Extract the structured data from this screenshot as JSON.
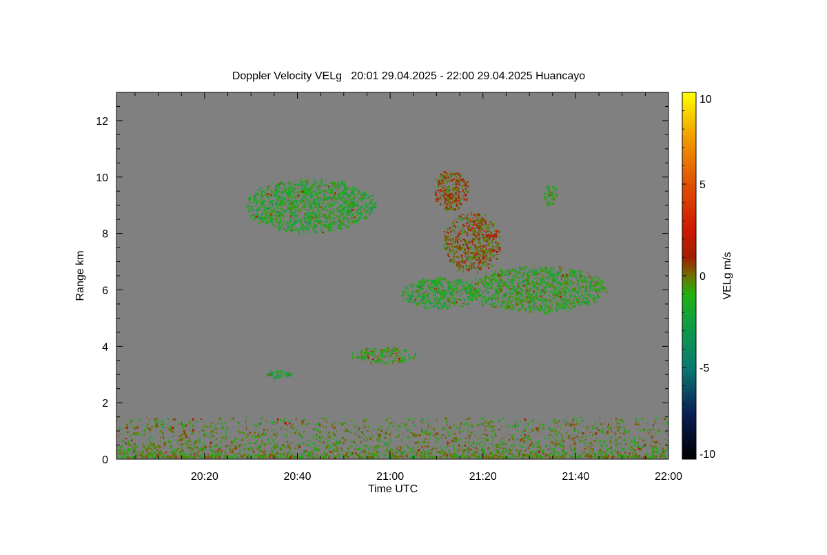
{
  "chart_data": {
    "type": "heatmap",
    "title": "Doppler Velocity VELg   20:01 29.04.2025 - 22:00 29.04.2025 Huancayo",
    "xlabel": "Time UTC",
    "ylabel": "Range km",
    "xlim": [
      "20:01",
      "22:00"
    ],
    "ylim": [
      0,
      13
    ],
    "x_ticks": [
      "20:20",
      "20:40",
      "21:00",
      "21:20",
      "21:40",
      "22:00"
    ],
    "y_ticks": [
      "0",
      "2",
      "4",
      "6",
      "8",
      "10",
      "12"
    ],
    "background_color": "#808080",
    "colorbar": {
      "label": "VELg m/s",
      "ticks": [
        "10",
        "5",
        "0",
        "-5",
        "-10"
      ],
      "range": [
        -10,
        10
      ],
      "stops": [
        {
          "value": -10,
          "color": "#000000"
        },
        {
          "value": -7.5,
          "color": "#0a1f55"
        },
        {
          "value": -5,
          "color": "#0a7a70"
        },
        {
          "value": -2.5,
          "color": "#10a040"
        },
        {
          "value": -1,
          "color": "#22b010"
        },
        {
          "value": 0,
          "color": "#707000"
        },
        {
          "value": 1,
          "color": "#a02000"
        },
        {
          "value": 2.5,
          "color": "#cc1800"
        },
        {
          "value": 5,
          "color": "#e05000"
        },
        {
          "value": 7.5,
          "color": "#f09a00"
        },
        {
          "value": 10,
          "color": "#ffff00"
        }
      ]
    },
    "echo_regions": [
      {
        "name": "upper cloud A",
        "time_start": "20:28",
        "time_end": "20:57",
        "range_bottom": 8.0,
        "range_top": 10.0,
        "velocity": -1.5
      },
      {
        "name": "upper cloud B",
        "time_start": "21:09",
        "time_end": "21:17",
        "range_bottom": 8.8,
        "range_top": 10.3,
        "velocity": 0.5
      },
      {
        "name": "small echo",
        "time_start": "21:33",
        "time_end": "21:36",
        "range_bottom": 8.9,
        "range_top": 9.8,
        "velocity": -1.0
      },
      {
        "name": "descending streak",
        "time_start": "21:11",
        "time_end": "21:24",
        "range_bottom": 6.6,
        "range_top": 8.8,
        "velocity": 0.3
      },
      {
        "name": "mid cloud",
        "time_start": "21:16",
        "time_end": "21:47",
        "range_bottom": 5.2,
        "range_top": 6.9,
        "velocity": -1.2
      },
      {
        "name": "mid fragments",
        "time_start": "21:02",
        "time_end": "21:19",
        "range_bottom": 5.3,
        "range_top": 6.5,
        "velocity": -1.5
      },
      {
        "name": "mid-low cloud",
        "time_start": "20:51",
        "time_end": "21:06",
        "range_bottom": 3.4,
        "range_top": 4.0,
        "velocity": -1.0
      },
      {
        "name": "low fragment",
        "time_start": "20:33",
        "time_end": "20:39",
        "range_bottom": 2.9,
        "range_top": 3.2,
        "velocity": -2.0
      },
      {
        "name": "boundary layer clutter",
        "time_start": "20:01",
        "time_end": "22:00",
        "range_bottom": 0.1,
        "range_top": 1.5,
        "velocity": -0.5
      }
    ]
  }
}
